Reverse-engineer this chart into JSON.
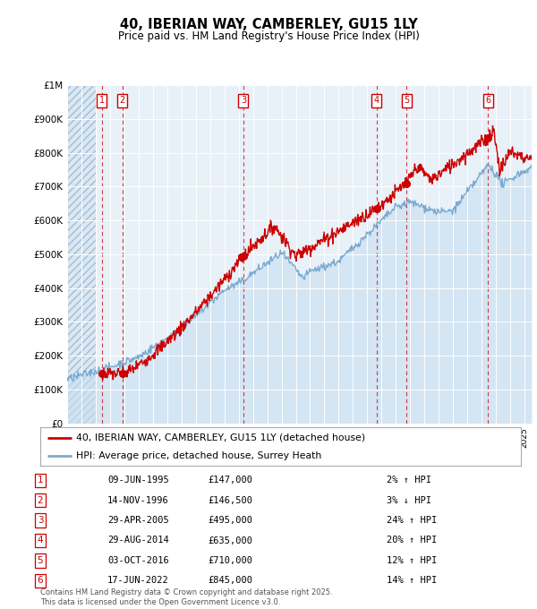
{
  "title": "40, IBERIAN WAY, CAMBERLEY, GU15 1LY",
  "subtitle": "Price paid vs. HM Land Registry's House Price Index (HPI)",
  "legend_line1": "40, IBERIAN WAY, CAMBERLEY, GU15 1LY (detached house)",
  "legend_line2": "HPI: Average price, detached house, Surrey Heath",
  "footer": "Contains HM Land Registry data © Crown copyright and database right 2025.\nThis data is licensed under the Open Government Licence v3.0.",
  "sales": [
    {
      "num": 1,
      "date": "09-JUN-1995",
      "price": 147000,
      "pct": "2%",
      "dir": "↑",
      "year": 1995.44
    },
    {
      "num": 2,
      "date": "14-NOV-1996",
      "price": 146500,
      "pct": "3%",
      "dir": "↓",
      "year": 1996.87
    },
    {
      "num": 3,
      "date": "29-APR-2005",
      "price": 495000,
      "pct": "24%",
      "dir": "↑",
      "year": 2005.33
    },
    {
      "num": 4,
      "date": "29-AUG-2014",
      "price": 635000,
      "pct": "20%",
      "dir": "↑",
      "year": 2014.66
    },
    {
      "num": 5,
      "date": "03-OCT-2016",
      "price": 710000,
      "pct": "12%",
      "dir": "↑",
      "year": 2016.75
    },
    {
      "num": 6,
      "date": "17-JUN-2022",
      "price": 845000,
      "pct": "14%",
      "dir": "↑",
      "year": 2022.46
    }
  ],
  "price_line_color": "#cc0000",
  "hpi_line_color": "#7aaad0",
  "hpi_fill_color": "#c8dff0",
  "background_color": "#e8f0f8",
  "ylim": [
    0,
    1000000
  ],
  "xlim_start": 1993,
  "xlim_end": 2025.5,
  "yticks": [
    0,
    100000,
    200000,
    300000,
    400000,
    500000,
    600000,
    700000,
    800000,
    900000,
    1000000
  ],
  "ytick_labels": [
    "£0",
    "£100K",
    "£200K",
    "£300K",
    "£400K",
    "£500K",
    "£600K",
    "£700K",
    "£800K",
    "£900K",
    "£1M"
  ]
}
